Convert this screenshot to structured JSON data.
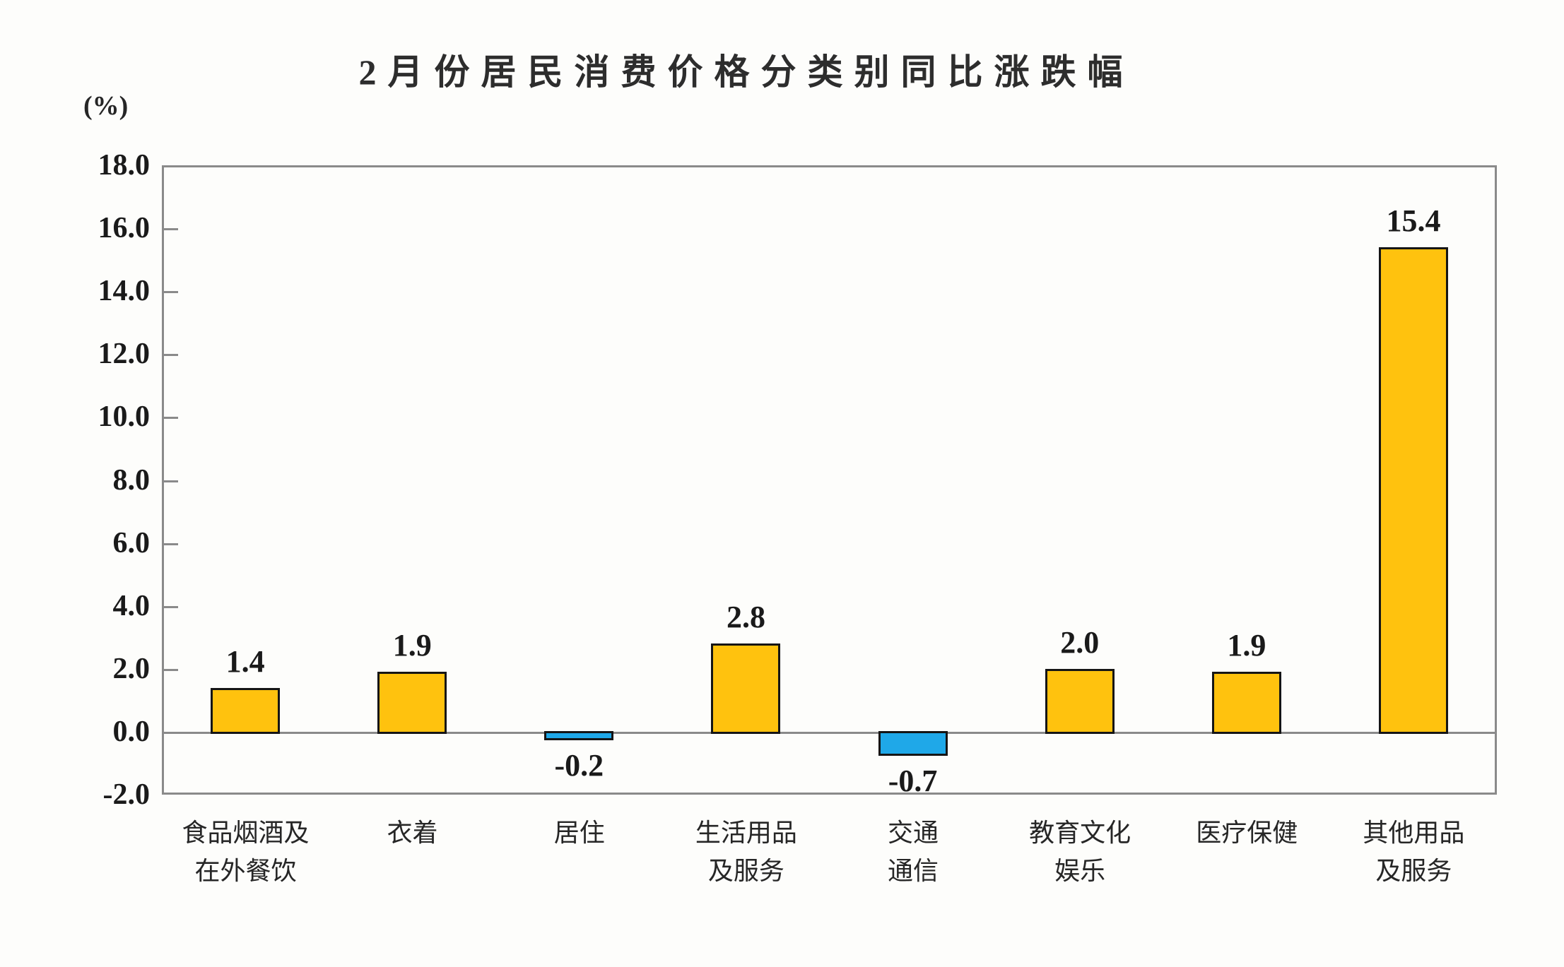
{
  "page": {
    "background": "#fdfdfb"
  },
  "chart": {
    "title": "2月份居民消费价格分类别同比涨跌幅",
    "unit_label": "(%)",
    "colors": {
      "positive_bar": "#FFC20E",
      "negative_bar": "#1FA8E8",
      "bar_border": "#151515",
      "axis": "#8A8A8A",
      "text": "#262626"
    },
    "y_axis": {
      "min": -2.0,
      "max": 18.0,
      "step": 2.0,
      "tick_labels": [
        "18.0",
        "16.0",
        "14.0",
        "12.0",
        "10.0",
        "8.0",
        "6.0",
        "4.0",
        "2.0",
        "0.0",
        "-2.0"
      ]
    }
  },
  "chart_data": {
    "type": "bar",
    "title": "2月份居民消费价格分类别同比涨跌幅",
    "xlabel": "",
    "ylabel": "(%)",
    "ylim": [
      -2.0,
      18.0
    ],
    "y_step": 2.0,
    "grid": false,
    "legend_position": "none",
    "categories": [
      "食品烟酒及在外餐饮",
      "衣着",
      "居住",
      "生活用品及服务",
      "交通通信",
      "教育文化娱乐",
      "医疗保健",
      "其他用品及服务"
    ],
    "category_lines": [
      [
        "食品烟酒及",
        "在外餐饮"
      ],
      [
        "衣着"
      ],
      [
        "居住"
      ],
      [
        "生活用品",
        "及服务"
      ],
      [
        "交通",
        "通信"
      ],
      [
        "教育文化",
        "娱乐"
      ],
      [
        "医疗保健"
      ],
      [
        "其他用品",
        "及服务"
      ]
    ],
    "values": [
      1.4,
      1.9,
      -0.2,
      2.8,
      -0.7,
      2.0,
      1.9,
      15.4
    ],
    "value_labels": [
      "1.4",
      "1.9",
      "-0.2",
      "2.8",
      "-0.7",
      "2.0",
      "1.9",
      "15.4"
    ],
    "bar_colors": [
      "#FFC20E",
      "#FFC20E",
      "#1FA8E8",
      "#FFC20E",
      "#1FA8E8",
      "#FFC20E",
      "#FFC20E",
      "#FFC20E"
    ]
  }
}
